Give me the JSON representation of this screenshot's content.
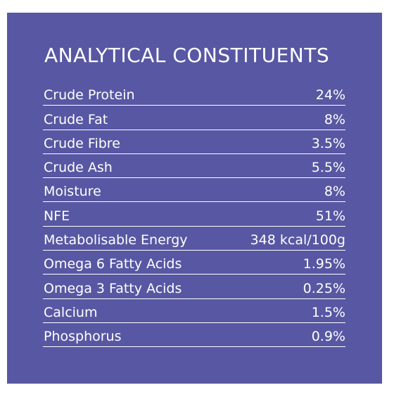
{
  "title": "ANALYTICAL CONSTITUENTS",
  "rows": [
    {
      "label": "Crude Protein",
      "value": "24%"
    },
    {
      "label": "Crude Fat",
      "value": "8%"
    },
    {
      "label": "Crude Fibre",
      "value": "3.5%"
    },
    {
      "label": "Crude Ash",
      "value": "5.5%"
    },
    {
      "label": "Moisture",
      "value": "8%"
    },
    {
      "label": "NFE",
      "value": "51%"
    },
    {
      "label": "Metabolisable Energy",
      "value": "348 kcal/100g"
    },
    {
      "label": "Omega 6 Fatty Acids",
      "value": "1.95%"
    },
    {
      "label": "Omega 3 Fatty Acids",
      "value": "0.25%"
    },
    {
      "label": "Calcium",
      "value": "1.5%"
    },
    {
      "label": "Phosphorus",
      "value": "0.9%"
    }
  ],
  "colors": {
    "panel_background": "#5857a3",
    "text": "#ffffff",
    "divider": "#ffffff"
  }
}
